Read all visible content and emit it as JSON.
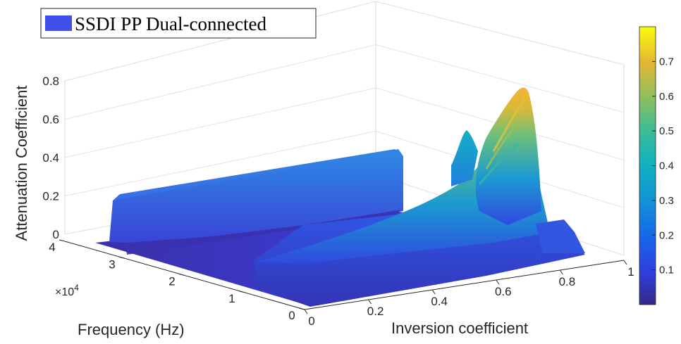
{
  "chart_data": {
    "type": "surface3d",
    "legend": {
      "label": "SSDI PP Dual-connected",
      "color": "#4050e8",
      "position": "top-left"
    },
    "xlabel": "Inversion coefficient",
    "ylabel": "Frequency (Hz)",
    "zlabel": "Attenuation Coefficient",
    "xlim": [
      0,
      1
    ],
    "ylim": [
      0,
      40000
    ],
    "zlim": [
      0,
      0.8
    ],
    "x_ticks": [
      "0",
      "0.2",
      "0.4",
      "0.6",
      "0.8",
      "1"
    ],
    "y_ticks": [
      "0",
      "1",
      "2",
      "3",
      "4"
    ],
    "y_exponent_label": "×10",
    "y_exponent_power": "4",
    "z_ticks": [
      "0",
      "0.2",
      "0.4",
      "0.6",
      "0.8"
    ],
    "grid": true,
    "colormap": "parula",
    "colorbar": {
      "ticks": [
        "0.1",
        "0.2",
        "0.3",
        "0.4",
        "0.5",
        "0.6",
        "0.7"
      ],
      "range": [
        0,
        0.8
      ],
      "position": "right"
    },
    "features": {
      "low_frequency_plateau": {
        "frequency_hz": 32000,
        "attenuation": 0.22
      },
      "peaks": [
        {
          "inversion_coefficient": 0.95,
          "frequency_hz": 30000,
          "attenuation": 0.78
        },
        {
          "inversion_coefficient": 0.95,
          "frequency_hz": 37000,
          "attenuation": 0.44
        }
      ]
    }
  }
}
